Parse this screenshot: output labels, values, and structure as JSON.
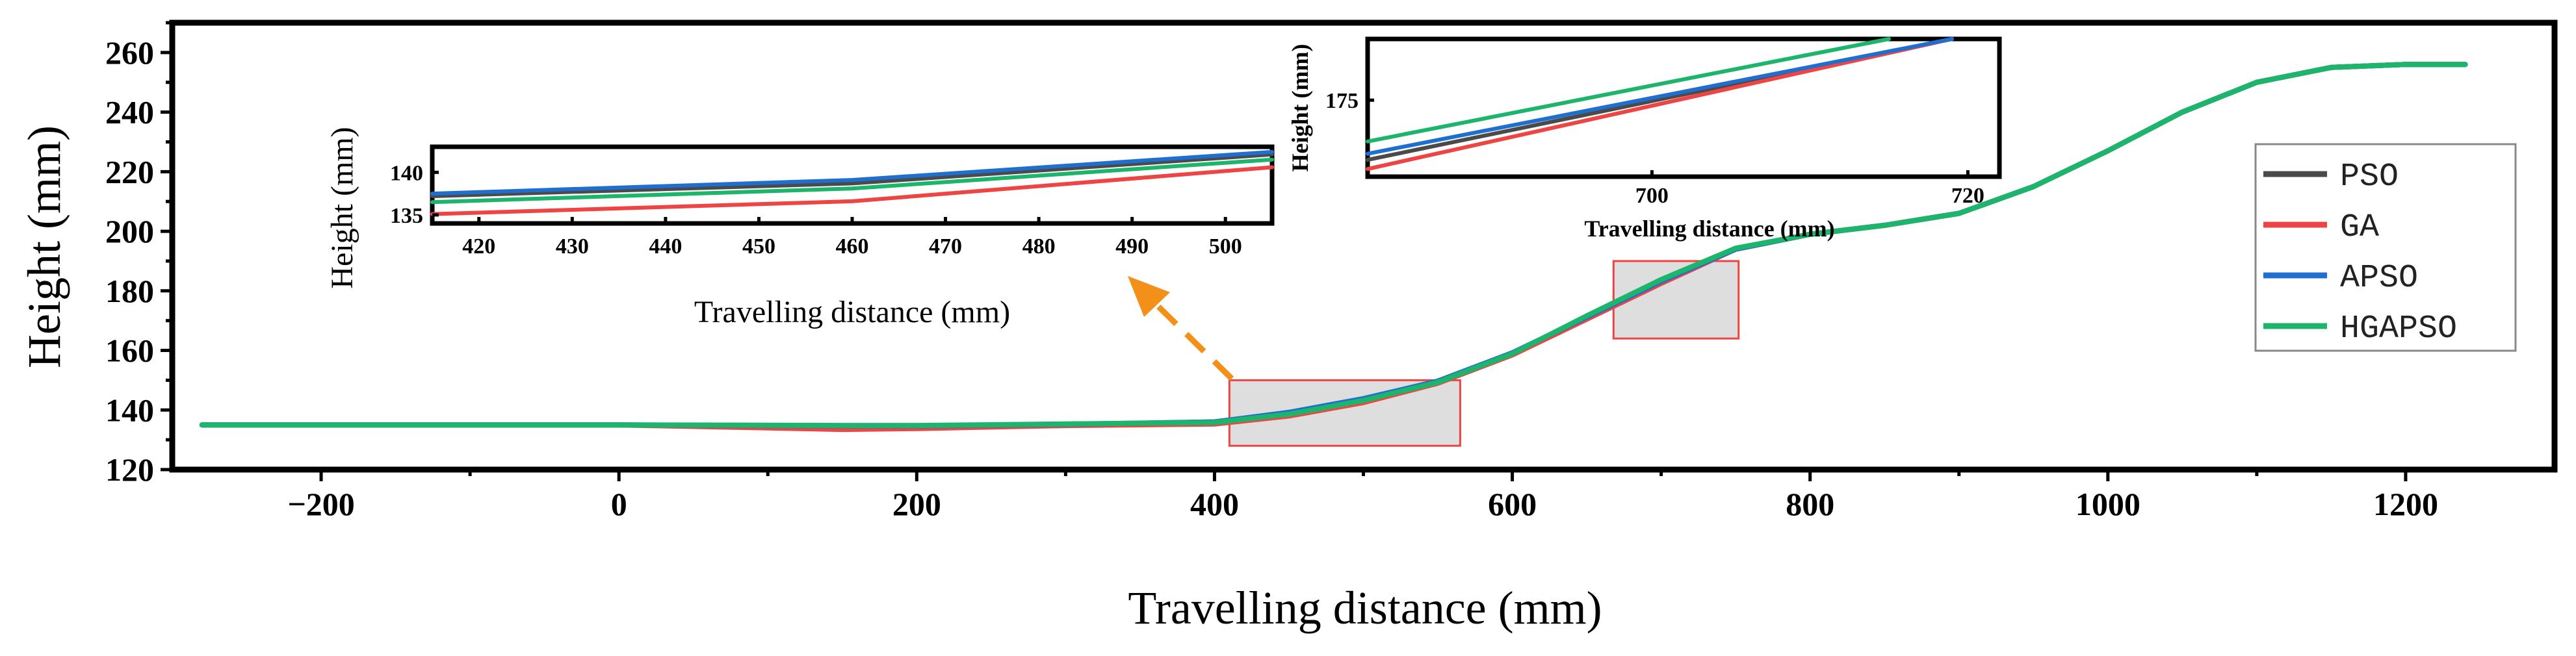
{
  "chart_data": {
    "type": "line",
    "xlabel": "Travelling distance (mm)",
    "ylabel": "Height (mm)",
    "xlim": [
      -300,
      1300
    ],
    "ylim": [
      120,
      270
    ],
    "xticks": [
      -200,
      0,
      200,
      400,
      600,
      800,
      1000,
      1200
    ],
    "xtick_labels": [
      "−200",
      "0",
      "200",
      "400",
      "600",
      "800",
      "1000",
      "1200"
    ],
    "yticks": [
      120,
      140,
      160,
      180,
      200,
      220,
      240,
      260
    ],
    "ytick_labels": [
      "120",
      "140",
      "160",
      "180",
      "200",
      "220",
      "240",
      "260"
    ],
    "legend_position": "right",
    "series": [
      {
        "name": "PSO",
        "color": "#4a4a4a",
        "x": [
          -280,
          0,
          100,
          150,
          200,
          300,
          400,
          450,
          500,
          550,
          600,
          650,
          700,
          750,
          800,
          850,
          900,
          950,
          1000,
          1050,
          1100,
          1150,
          1200,
          1240
        ],
        "y": [
          135,
          135,
          134.7,
          134.5,
          134.5,
          135,
          136,
          139,
          143.5,
          149.5,
          159,
          171,
          183,
          194,
          199,
          202,
          206,
          215,
          227,
          240,
          250,
          255,
          256,
          256
        ]
      },
      {
        "name": "GA",
        "color": "#ef4444",
        "x": [
          -280,
          0,
          100,
          150,
          200,
          300,
          400,
          450,
          500,
          550,
          600,
          650,
          700,
          750,
          800,
          850,
          900,
          950,
          1000,
          1050,
          1100,
          1150,
          1200,
          1240
        ],
        "y": [
          135,
          135,
          134,
          133.5,
          133.8,
          134.8,
          135.3,
          138,
          142.5,
          149,
          158.5,
          170.5,
          182.5,
          194,
          199,
          202,
          206,
          215,
          227,
          240,
          250,
          255,
          256,
          256
        ]
      },
      {
        "name": "APSO",
        "color": "#1f6fd1",
        "x": [
          -280,
          0,
          100,
          150,
          200,
          300,
          400,
          450,
          500,
          550,
          600,
          650,
          700,
          750,
          800,
          850,
          900,
          950,
          1000,
          1050,
          1100,
          1150,
          1200,
          1240
        ],
        "y": [
          135,
          135,
          134.8,
          134.7,
          134.7,
          135.2,
          136,
          139.2,
          143.8,
          149.7,
          159.2,
          171.2,
          183.2,
          194,
          199,
          202,
          206,
          215,
          227,
          240,
          250,
          255,
          256,
          256
        ]
      },
      {
        "name": "HGAPSO",
        "color": "#1db56c",
        "x": [
          -280,
          0,
          100,
          150,
          200,
          300,
          400,
          450,
          500,
          550,
          600,
          650,
          700,
          750,
          800,
          850,
          900,
          950,
          1000,
          1050,
          1100,
          1150,
          1200,
          1240
        ],
        "y": [
          135,
          135,
          134.9,
          134.8,
          134.8,
          135.3,
          135.8,
          138.6,
          143.2,
          149.3,
          158.9,
          171.6,
          183.8,
          194.3,
          199,
          202,
          206,
          215,
          227,
          240,
          250,
          255,
          256,
          256
        ]
      }
    ],
    "zoom_regions": [
      {
        "x": [
          410,
          565
        ],
        "y": [
          128,
          150
        ]
      },
      {
        "x": [
          668,
          752
        ],
        "y": [
          164,
          190
        ]
      }
    ],
    "insets": [
      {
        "xlabel": "Travelling distance (mm)",
        "ylabel": "Height (mm)",
        "xlim": [
          415,
          505
        ],
        "ylim": [
          134,
          143
        ],
        "xticks": [
          420,
          430,
          440,
          450,
          460,
          470,
          480,
          490,
          500
        ],
        "xtick_labels": [
          "420",
          "430",
          "440",
          "450",
          "460",
          "470",
          "480",
          "490",
          "500"
        ],
        "yticks": [
          135,
          140
        ],
        "ytick_labels": [
          "135",
          "140"
        ],
        "series": [
          {
            "name": "PSO",
            "x": [
              415,
              460,
              505
            ],
            "y": [
              137.2,
              138.7,
              142.1
            ]
          },
          {
            "name": "GA",
            "x": [
              415,
              460,
              505
            ],
            "y": [
              135.1,
              136.6,
              140.6
            ]
          },
          {
            "name": "APSO",
            "x": [
              415,
              460,
              505
            ],
            "y": [
              137.5,
              139.1,
              142.4
            ]
          },
          {
            "name": "HGAPSO",
            "x": [
              415,
              460,
              505
            ],
            "y": [
              136.5,
              138.1,
              141.5
            ]
          }
        ]
      },
      {
        "xlabel": "Travelling distance (mm)",
        "ylabel": "Height (mm)",
        "xlim": [
          682,
          722
        ],
        "ylim": [
          170,
          179
        ],
        "xticks": [
          700,
          720
        ],
        "xtick_labels": [
          "700",
          "720"
        ],
        "yticks": [
          175
        ],
        "ytick_labels": [
          "175"
        ],
        "series": [
          {
            "name": "PSO",
            "x": [
              682,
              719
            ],
            "y": [
              171.1,
              179
            ]
          },
          {
            "name": "GA",
            "x": [
              682,
              719
            ],
            "y": [
              170.5,
              179
            ]
          },
          {
            "name": "APSO",
            "x": [
              682,
              719
            ],
            "y": [
              171.5,
              179
            ]
          },
          {
            "name": "HGAPSO",
            "x": [
              682,
              715
            ],
            "y": [
              172.3,
              179
            ]
          }
        ]
      }
    ]
  }
}
